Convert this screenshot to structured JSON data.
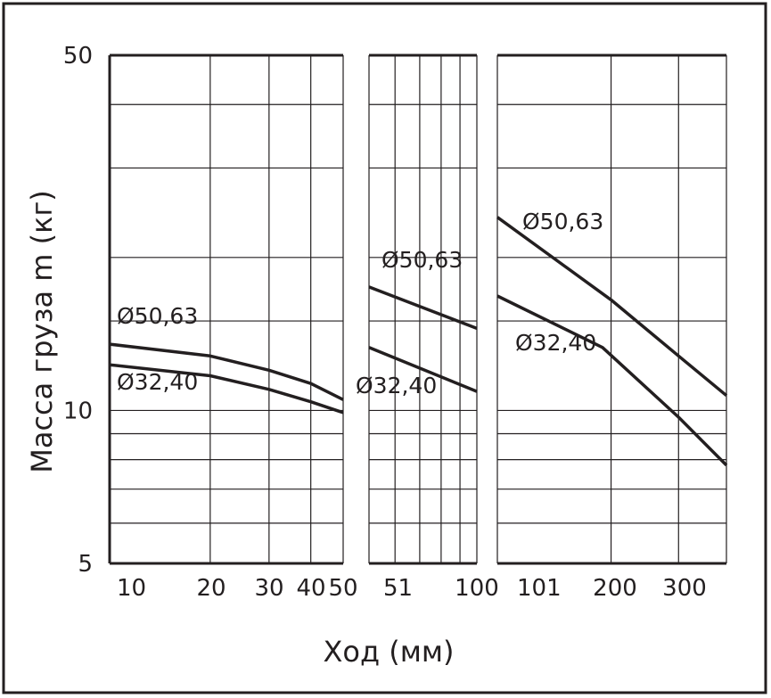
{
  "chart_data": {
    "type": "line",
    "xlabel": "Ход (мм)",
    "ylabel": "Масса груза m (кг)",
    "yscale": "log",
    "ylim": [
      5,
      50
    ],
    "yticks": [
      {
        "value": 50,
        "label": "50"
      },
      {
        "value": 10,
        "label": "10"
      },
      {
        "value": 5,
        "label": "5"
      }
    ],
    "ygrid": [
      6,
      7,
      8,
      9,
      10,
      15,
      20,
      30,
      40,
      50
    ],
    "xscale": "log",
    "grid": true,
    "panels": [
      {
        "xlim": [
          10,
          50
        ],
        "xtick_labels": [
          {
            "value": 10,
            "label": "10"
          },
          {
            "value": 20,
            "label": "20"
          },
          {
            "value": 30,
            "label": "30"
          },
          {
            "value": 40,
            "label": "40"
          },
          {
            "value": 50,
            "label": "50"
          }
        ],
        "xgrid": [
          20,
          30,
          40
        ],
        "series": [
          {
            "name": "Ø50,63",
            "points": [
              [
                10,
                13.5
              ],
              [
                20,
                12.8
              ],
              [
                30,
                12.0
              ],
              [
                40,
                11.3
              ],
              [
                50,
                10.5
              ]
            ]
          },
          {
            "name": "Ø32,40",
            "points": [
              [
                10,
                12.3
              ],
              [
                20,
                11.7
              ],
              [
                30,
                11.0
              ],
              [
                40,
                10.4
              ],
              [
                50,
                9.9
              ]
            ]
          }
        ]
      },
      {
        "xlim": [
          51,
          100
        ],
        "xtick_labels": [
          {
            "value": 51,
            "label": "51"
          },
          {
            "value": 100,
            "label": "100"
          }
        ],
        "xgrid": [
          60,
          70,
          80,
          90
        ],
        "series": [
          {
            "name": "Ø50,63",
            "points": [
              [
                51,
                17.5
              ],
              [
                100,
                14.5
              ]
            ]
          },
          {
            "name": "Ø32,40",
            "points": [
              [
                51,
                13.3
              ],
              [
                100,
                10.9
              ]
            ]
          }
        ]
      },
      {
        "xlim": [
          101,
          400
        ],
        "xtick_labels": [
          {
            "value": 101,
            "label": "101"
          },
          {
            "value": 200,
            "label": "200"
          },
          {
            "value": 300,
            "label": "300"
          }
        ],
        "xgrid": [
          200,
          300
        ],
        "series": [
          {
            "name": "Ø50,63",
            "points": [
              [
                101,
                24.0
              ],
              [
                200,
                16.5
              ],
              [
                300,
                12.8
              ],
              [
                400,
                10.7
              ]
            ]
          },
          {
            "name": "Ø32,40",
            "points": [
              [
                101,
                16.8
              ],
              [
                190,
                13.3
              ],
              [
                300,
                9.7
              ],
              [
                400,
                7.8
              ]
            ]
          }
        ]
      }
    ],
    "annotations": [
      {
        "panel": 0,
        "text": "Ø50,63"
      },
      {
        "panel": 0,
        "text": "Ø32,40"
      },
      {
        "panel": 1,
        "text": "Ø50,63"
      },
      {
        "panel": 1,
        "text": "Ø32,40"
      },
      {
        "panel": 2,
        "text": "Ø50,63"
      },
      {
        "panel": 2,
        "text": "Ø32,40"
      }
    ]
  }
}
